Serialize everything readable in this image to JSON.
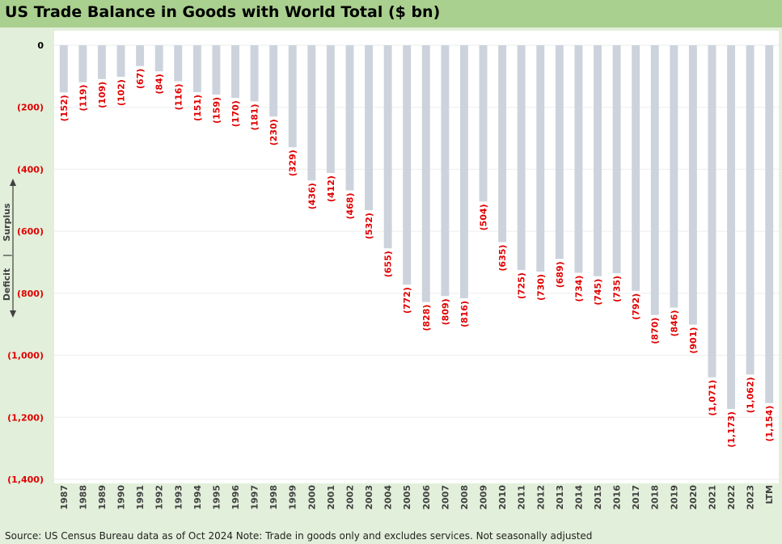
{
  "colors": {
    "title_bar": "#a9d08e",
    "background": "#e2efda",
    "bar": "#ccd3dc",
    "negative_label": "#e00000"
  },
  "indicator": {
    "up_label": "Surplus",
    "down_label": "Deficit",
    "separator": "|"
  },
  "source_note": "Source: US Census Bureau data as of Oct 2024 Note: Trade in goods only and excludes services. Not seasonally adjusted",
  "chart_data": {
    "type": "bar",
    "title": "US Trade Balance in Goods with World Total ($ bn)",
    "xlabel": "",
    "ylabel": "",
    "ylim": [
      -1400,
      0
    ],
    "yticks": [
      0,
      -200,
      -400,
      -600,
      -800,
      -1000,
      -1200,
      -1400
    ],
    "ytick_labels": [
      "0",
      "(200)",
      "(400)",
      "(600)",
      "(800)",
      "(1,000)",
      "(1,200)",
      "(1,400)"
    ],
    "grid": true,
    "legend": "none",
    "categories": [
      "1987",
      "1988",
      "1989",
      "1990",
      "1991",
      "1992",
      "1993",
      "1994",
      "1995",
      "1996",
      "1997",
      "1998",
      "1999",
      "2000",
      "2001",
      "2002",
      "2003",
      "2004",
      "2005",
      "2006",
      "2007",
      "2008",
      "2009",
      "2010",
      "2011",
      "2012",
      "2013",
      "2014",
      "2015",
      "2016",
      "2017",
      "2018",
      "2019",
      "2020",
      "2021",
      "2022",
      "2023",
      "LTM"
    ],
    "values": [
      -152,
      -119,
      -109,
      -102,
      -67,
      -84,
      -116,
      -151,
      -159,
      -170,
      -181,
      -230,
      -329,
      -436,
      -412,
      -468,
      -532,
      -655,
      -772,
      -828,
      -809,
      -816,
      -504,
      -635,
      -725,
      -730,
      -689,
      -734,
      -745,
      -735,
      -792,
      -870,
      -846,
      -901,
      -1071,
      -1173,
      -1062,
      -1154
    ],
    "data_labels": [
      "(152)",
      "(119)",
      "(109)",
      "(102)",
      "(67)",
      "(84)",
      "(116)",
      "(151)",
      "(159)",
      "(170)",
      "(181)",
      "(230)",
      "(329)",
      "(436)",
      "(412)",
      "(468)",
      "(532)",
      "(655)",
      "(772)",
      "(828)",
      "(809)",
      "(816)",
      "(504)",
      "(635)",
      "(725)",
      "(730)",
      "(689)",
      "(734)",
      "(745)",
      "(735)",
      "(792)",
      "(870)",
      "(846)",
      "(901)",
      "(1,071)",
      "(1,173)",
      "(1,062)",
      "(1,154)"
    ]
  }
}
